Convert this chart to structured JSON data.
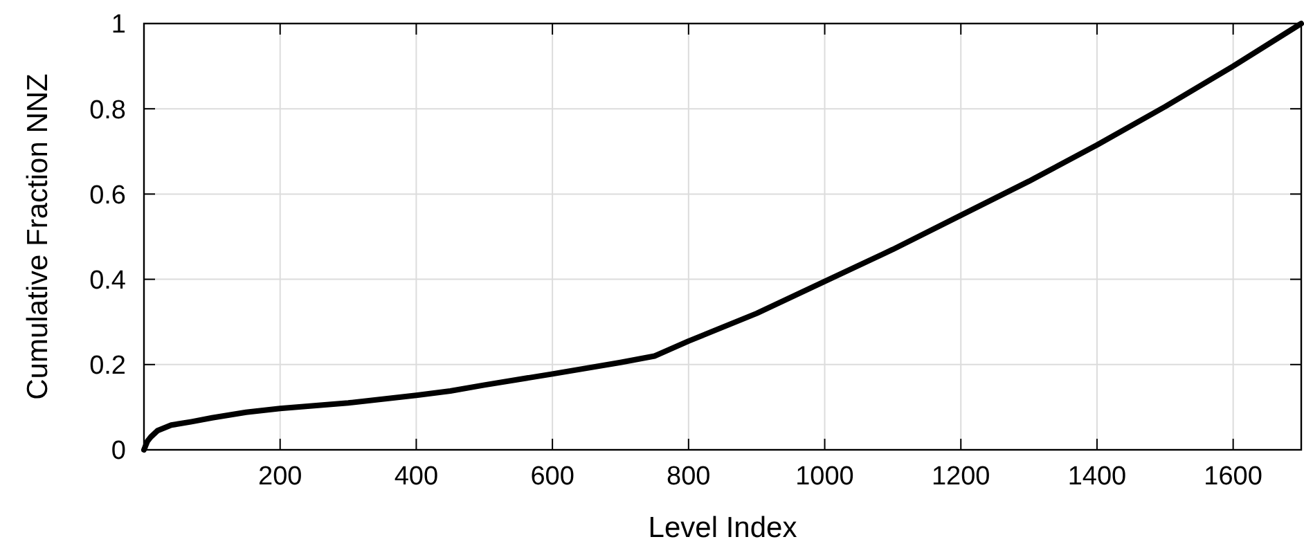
{
  "chart_data": {
    "type": "line",
    "xlabel": "Level Index",
    "ylabel": "Cumulative Fraction NNZ",
    "x": [
      0,
      5,
      10,
      20,
      40,
      70,
      100,
      150,
      200,
      300,
      400,
      450,
      500,
      600,
      700,
      750,
      800,
      900,
      1000,
      1100,
      1200,
      1300,
      1400,
      1500,
      1600,
      1700
    ],
    "series": [
      {
        "color": "#000000",
        "values": [
          0,
          0.02,
          0.03,
          0.045,
          0.058,
          0.066,
          0.075,
          0.088,
          0.097,
          0.11,
          0.128,
          0.138,
          0.152,
          0.178,
          0.205,
          0.22,
          0.255,
          0.32,
          0.395,
          0.47,
          0.55,
          0.63,
          0.715,
          0.805,
          0.9,
          1
        ]
      }
    ],
    "xlim": [
      0,
      1700
    ],
    "xticks": [
      200,
      400,
      600,
      800,
      1000,
      1200,
      1400,
      1600
    ],
    "ylim": [
      0,
      1
    ],
    "yticks": [
      0,
      0.2,
      0.4,
      0.6,
      0.8,
      1
    ],
    "grid": true,
    "line_style": "solid",
    "marker": "none"
  }
}
